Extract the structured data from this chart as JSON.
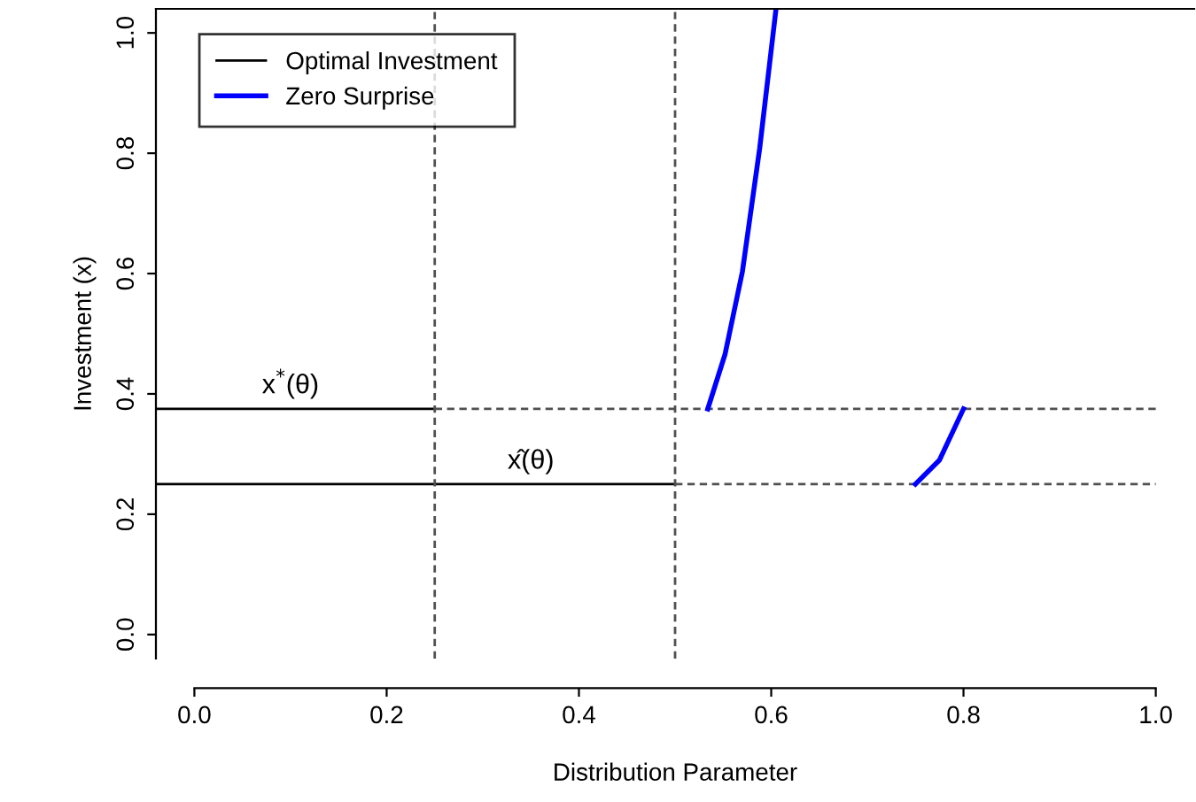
{
  "chart_data": {
    "type": "line",
    "xlabel": "Distribution Parameter",
    "ylabel": "Investment (x)",
    "xlim": [
      -0.04,
      1.04
    ],
    "ylim": [
      -0.04,
      1.04
    ],
    "xticks": [
      {
        "value": 0,
        "label": "0.0"
      },
      0.2,
      0.4,
      0.6,
      0.8,
      {
        "value": 1,
        "label": "1.0"
      }
    ],
    "yticks": [
      {
        "value": 0,
        "label": "0.0"
      },
      0.2,
      0.4,
      0.6,
      0.8,
      {
        "value": 1,
        "label": "1.0"
      }
    ],
    "grid": false,
    "legend": "top left",
    "marker": "none",
    "series": [
      {
        "name": "Optimal Investment",
        "color": "#000000",
        "x": [
          -0.04,
          0.25
        ],
        "values": [
          0.375,
          0.375
        ]
      },
      {
        "color": "#000000",
        "x": [
          -0.04,
          0.5
        ],
        "values": [
          0.25,
          0.25
        ]
      },
      {
        "color": "#505050",
        "line_style": "dashed",
        "x": [
          0.25,
          1.0
        ],
        "values": [
          0.375,
          0.375
        ]
      },
      {
        "color": "#505050",
        "line_style": "dashed",
        "x": [
          0.5,
          1.0
        ],
        "values": [
          0.25,
          0.25
        ]
      },
      {
        "name": "Zero Surprise",
        "color": "#0000ff",
        "x": [
          0.534,
          0.552,
          0.57,
          0.588,
          0.605
        ],
        "values": [
          0.375,
          0.466,
          0.603,
          0.808,
          1.04
        ]
      },
      {
        "color": "#0000ff",
        "x": [
          0.75,
          0.775,
          0.8
        ],
        "values": [
          0.25,
          0.29,
          0.375
        ]
      }
    ],
    "ref_lines": [
      {
        "axis": "x",
        "value": 0.25,
        "color": "#505050",
        "line_style": "dashed"
      },
      {
        "axis": "x",
        "value": 0.5,
        "color": "#505050",
        "line_style": "dashed"
      }
    ],
    "annotations": [
      {
        "text": "x$^{*}$(θ)",
        "x": 0.1,
        "y": 0.375
      },
      {
        "text": "x̂(θ)",
        "x": 0.35,
        "y": 0.25
      }
    ]
  }
}
